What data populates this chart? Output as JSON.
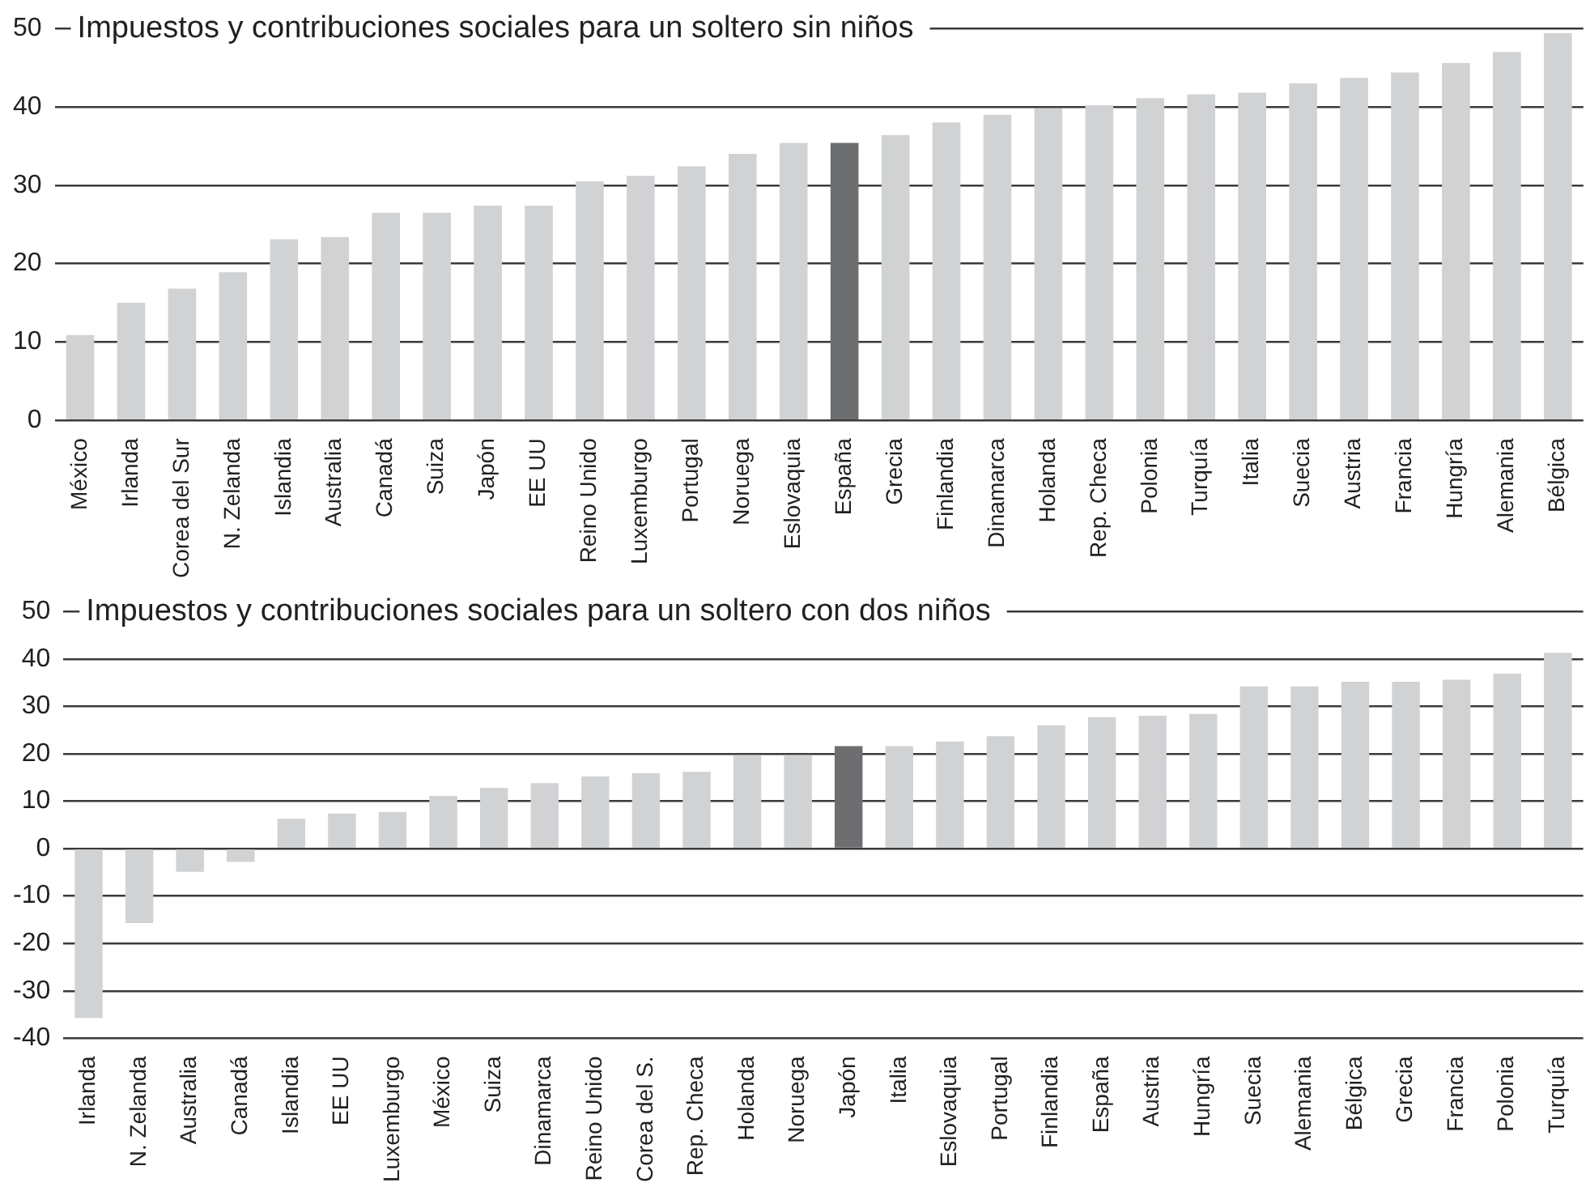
{
  "chart_data": [
    {
      "type": "bar",
      "title": "Impuestos y contribuciones sociales para un soltero sin niños",
      "categories": [
        "México",
        "Irlanda",
        "Corea del Sur",
        "N. Zelanda",
        "Islandia",
        "Australia",
        "Canadá",
        "Suiza",
        "Japón",
        "EE UU",
        "Reino Unido",
        "Luxemburgo",
        "Portugal",
        "Noruega",
        "Eslovaquia",
        "España",
        "Grecia",
        "Finlandia",
        "Dinamarca",
        "Holanda",
        "Rep. Checa",
        "Polonia",
        "Turquía",
        "Italia",
        "Suecia",
        "Austria",
        "Francia",
        "Hungría",
        "Alemania",
        "Bélgica"
      ],
      "values": [
        10.9,
        15.0,
        16.8,
        18.9,
        23.1,
        23.4,
        26.5,
        26.5,
        27.4,
        27.4,
        30.5,
        31.2,
        32.4,
        34.0,
        35.4,
        35.4,
        36.4,
        38.0,
        39.0,
        39.8,
        40.2,
        41.1,
        41.6,
        41.8,
        43.0,
        43.7,
        44.4,
        45.6,
        47.0,
        49.4
      ],
      "colors": [
        "#d1d2d4",
        "#d1d2d4",
        "#d1d2d4",
        "#d1d2d4",
        "#d1d2d4",
        "#d1d2d4",
        "#d1d2d4",
        "#d1d2d4",
        "#d1d2d4",
        "#d1d2d4",
        "#d1d2d4",
        "#d1d2d4",
        "#d1d2d4",
        "#d1d2d4",
        "#d1d2d4",
        "#6d6e70",
        "#d1d2d4",
        "#d1d2d4",
        "#d1d2d4",
        "#d1d2d4",
        "#d1d2d4",
        "#d1d2d4",
        "#d1d2d4",
        "#d1d2d4",
        "#d1d2d4",
        "#d1d2d4",
        "#d1d2d4",
        "#d1d2d4",
        "#d1d2d4",
        "#d1d2d4"
      ],
      "ylim": [
        0,
        50
      ],
      "yticks": [
        0,
        10,
        20,
        30,
        40,
        50
      ],
      "grid": "y",
      "legend": false
    },
    {
      "type": "bar",
      "title": "Impuestos y contribuciones sociales para un soltero con dos niños",
      "categories": [
        "Irlanda",
        "N. Zelanda",
        "Australia",
        "Canadá",
        "Islandia",
        "EE UU",
        "Luxemburgo",
        "México",
        "Suiza",
        "Dinamarca",
        "Reino Unido",
        "Corea del S.",
        "Rep. Checa",
        "Holanda",
        "Noruega",
        "Japón",
        "Italia",
        "Eslovaquia",
        "Portugal",
        "Finlandia",
        "España",
        "Austria",
        "Hungría",
        "Suecia",
        "Alemania",
        "Bélgica",
        "Grecia",
        "Francia",
        "Polonia",
        "Turquía"
      ],
      "values": [
        -35.7,
        -15.7,
        -4.9,
        -2.8,
        6.3,
        7.4,
        7.7,
        11.1,
        12.8,
        13.8,
        15.2,
        15.9,
        16.2,
        19.7,
        19.7,
        21.6,
        21.6,
        22.6,
        23.7,
        26.0,
        27.7,
        28.0,
        28.4,
        34.2,
        34.2,
        35.2,
        35.2,
        35.6,
        36.9,
        41.3
      ],
      "colors": [
        "#d1d2d4",
        "#d1d2d4",
        "#d1d2d4",
        "#d1d2d4",
        "#d1d2d4",
        "#d1d2d4",
        "#d1d2d4",
        "#d1d2d4",
        "#d1d2d4",
        "#d1d2d4",
        "#d1d2d4",
        "#d1d2d4",
        "#d1d2d4",
        "#d1d2d4",
        "#d1d2d4",
        "#6d6e70",
        "#d1d2d4",
        "#d1d2d4",
        "#d1d2d4",
        "#d1d2d4",
        "#d1d2d4",
        "#d1d2d4",
        "#d1d2d4",
        "#d1d2d4",
        "#d1d2d4",
        "#d1d2d4",
        "#d1d2d4",
        "#d1d2d4",
        "#d1d2d4",
        "#d1d2d4"
      ],
      "ylim": [
        -40,
        50
      ],
      "yticks": [
        -40,
        -30,
        -20,
        -10,
        0,
        10,
        20,
        30,
        40,
        50
      ],
      "grid": "y",
      "legend": false
    }
  ]
}
